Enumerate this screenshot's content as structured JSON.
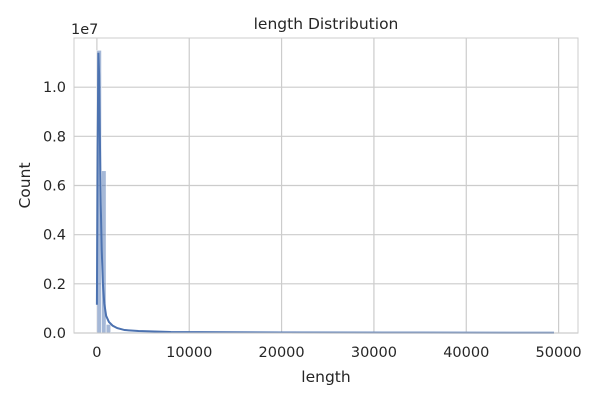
{
  "chart_data": {
    "type": "bar",
    "title": "length Distribution",
    "xlabel": "length",
    "ylabel": "Count",
    "y_offset_label": "1e7",
    "xlim": [
      -2480,
      52100
    ],
    "ylim": [
      0,
      1.2
    ],
    "xticks": [
      0,
      10000,
      20000,
      30000,
      40000,
      50000
    ],
    "xtick_labels": [
      "0",
      "10000",
      "20000",
      "30000",
      "40000",
      "50000"
    ],
    "yticks": [
      0.0,
      0.2,
      0.4,
      0.6,
      0.8,
      1.0
    ],
    "ytick_labels": [
      "0.0",
      "0.2",
      "0.4",
      "0.6",
      "0.8",
      "1.0"
    ],
    "grid": true,
    "bins": [
      {
        "start": 0,
        "end": 500,
        "count": 1.15
      },
      {
        "start": 500,
        "end": 1000,
        "count": 0.66
      },
      {
        "start": 1000,
        "end": 1500,
        "count": 0.035
      },
      {
        "start": 1500,
        "end": 49500,
        "count": 0.004
      }
    ],
    "kde": {
      "name": "KDE",
      "x": [
        0,
        80,
        160,
        240,
        320,
        420,
        520,
        650,
        800,
        1000,
        1300,
        1700,
        2200,
        3000,
        4500,
        8000,
        20000,
        35000,
        49500
      ],
      "y": [
        0.115,
        0.75,
        1.14,
        1.05,
        0.8,
        0.52,
        0.34,
        0.2,
        0.12,
        0.07,
        0.045,
        0.03,
        0.02,
        0.012,
        0.008,
        0.004,
        0.002,
        0.0015,
        0.001
      ]
    },
    "colors": {
      "bar": "#4c72b0",
      "line": "#4c72b0",
      "grid": "#cccccc",
      "axis": "#cccccc"
    }
  }
}
